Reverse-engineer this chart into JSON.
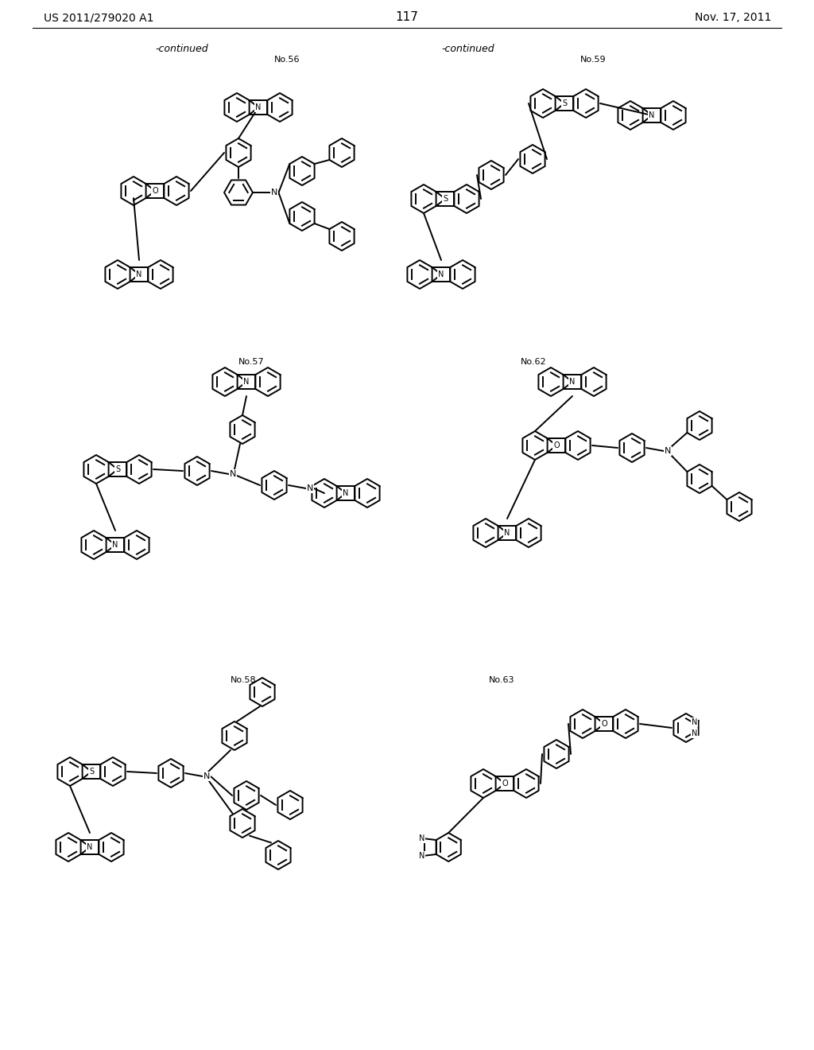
{
  "background_color": "#ffffff",
  "page_number": "117",
  "patent_left": "US 2011/279020 A1",
  "patent_right": "Nov. 17, 2011",
  "continued_left": "-continued",
  "continued_right": "-continued",
  "font_color": "#000000",
  "line_color": "#000000",
  "line_width": 1.4
}
